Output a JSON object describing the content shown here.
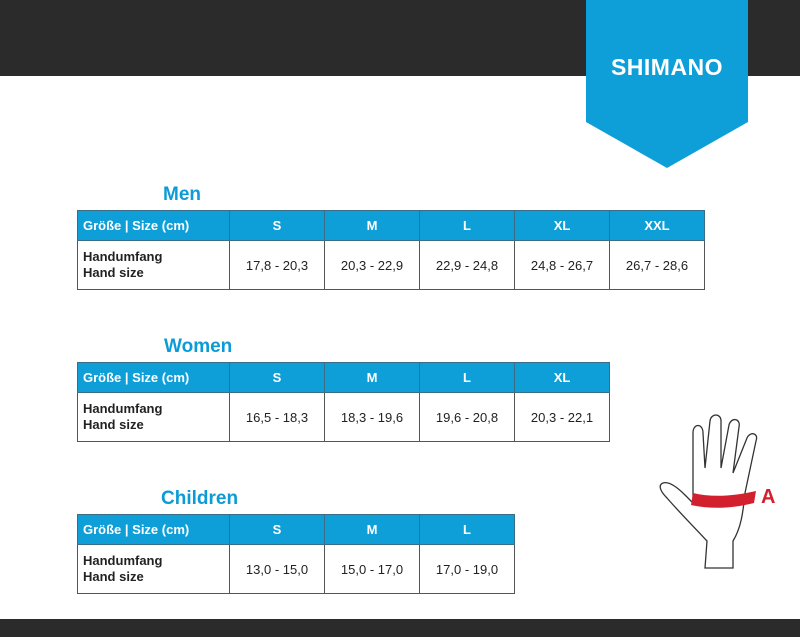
{
  "brand": {
    "logo_text": "SHIMANO",
    "color": "#0f9fd8"
  },
  "header_label": "Größe | Size (cm)",
  "row_label_line1": "Handumfang",
  "row_label_line2": "Hand size",
  "tables": [
    {
      "title": "Men",
      "sizes": [
        "S",
        "M",
        "L",
        "XL",
        "XXL"
      ],
      "values": [
        "17,8 - 20,3",
        "20,3 - 22,9",
        "22,9 - 24,8",
        "24,8 - 26,7",
        "26,7 - 28,6"
      ]
    },
    {
      "title": "Women",
      "sizes": [
        "S",
        "M",
        "L",
        "XL"
      ],
      "values": [
        "16,5 - 18,3",
        "18,3 - 19,6",
        "19,6 - 20,8",
        "20,3 - 22,1"
      ]
    },
    {
      "title": "Children",
      "sizes": [
        "S",
        "M",
        "L"
      ],
      "values": [
        "13,0 - 15,0",
        "15,0 - 17,0",
        "17,0 - 19,0"
      ]
    }
  ],
  "diagram": {
    "label": "A",
    "band_color": "#d3202f"
  }
}
